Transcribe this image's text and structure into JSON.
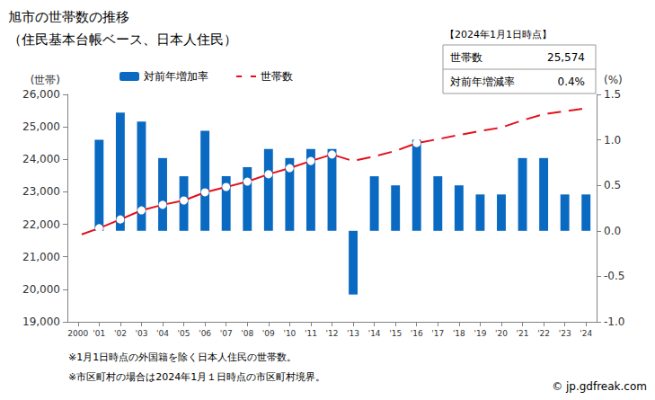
{
  "chart_data": {
    "type": "bar",
    "title": "旭市の世帯数の推移",
    "subtitle": "（住民基本台帳ベース、日本人住民）",
    "ylabel": "(世帯)",
    "y2label": "(%)",
    "categories": [
      "2000",
      "'01",
      "'02",
      "'03",
      "'04",
      "'05",
      "'06",
      "'07",
      "'08",
      "'09",
      "'10",
      "'11",
      "'12",
      "'13",
      "'14",
      "'15",
      "'16",
      "'17",
      "'18",
      "'19",
      "'20",
      "'21",
      "'22",
      "'23",
      "'24"
    ],
    "series": [
      {
        "name": "対前年増加率",
        "type": "bar",
        "axis": "y2",
        "color": "#0a6ac2",
        "values": [
          null,
          1.0,
          1.3,
          1.2,
          0.8,
          0.6,
          1.1,
          0.6,
          0.7,
          0.9,
          0.8,
          0.9,
          0.9,
          -0.7,
          0.6,
          0.5,
          1.0,
          0.6,
          0.5,
          0.4,
          0.4,
          0.8,
          0.8,
          0.4,
          0.4
        ]
      },
      {
        "name": "世帯数",
        "type": "line",
        "color": "#e3101a",
        "marker": "circle",
        "values": [
          21650,
          21880,
          22150,
          22430,
          22600,
          22735,
          22985,
          23150,
          23315,
          23540,
          23730,
          23950,
          24150,
          23950,
          24090,
          24260,
          24500,
          24620,
          24750,
          24870,
          24980,
          25200,
          25390,
          25480,
          25574
        ]
      }
    ],
    "ylim": [
      19000,
      26000
    ],
    "yticks": [
      {
        "value": 19000,
        "label": "19,000"
      },
      {
        "value": 20000,
        "label": "20,000"
      },
      {
        "value": 21000,
        "label": "21,000"
      },
      {
        "value": 22000,
        "label": "22,000"
      },
      {
        "value": 23000,
        "label": "23,000"
      },
      {
        "value": 24000,
        "label": "24,000"
      },
      {
        "value": 25000,
        "label": "25,000"
      },
      {
        "value": 26000,
        "label": "26,000"
      }
    ],
    "y2lim": [
      -1.0,
      1.5
    ],
    "y2ticks": [
      {
        "value": -1.0,
        "label": "-1.0"
      },
      {
        "value": -0.5,
        "label": "-0.5"
      },
      {
        "value": 0,
        "label": "0.0"
      },
      {
        "value": 0.5,
        "label": "0.5"
      },
      {
        "value": 1.0,
        "label": "1.0"
      },
      {
        "value": 1.5,
        "label": "1.5"
      }
    ],
    "grid": false,
    "legend": "upper left",
    "info_box": {
      "title": "【2024年1月1日時点】",
      "rows": [
        {
          "label": "世帯数",
          "value": "25,574"
        },
        {
          "label": "対前年増減率",
          "value": "0.4%"
        }
      ]
    },
    "annotations": [
      "※1月1日時点の外国籍を除く日本人住民の世帯数。",
      "※市区町村の場合は2024年1月１日時点の市区町村境界。",
      "© jp.gdfreak.com"
    ]
  }
}
